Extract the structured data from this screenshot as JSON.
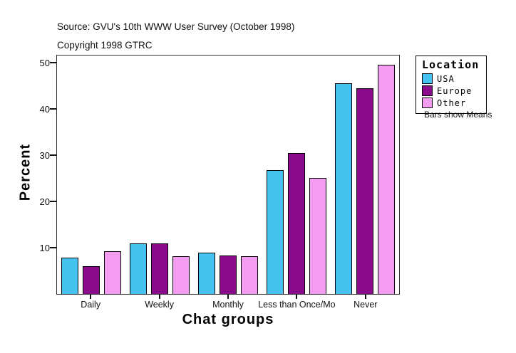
{
  "header": {
    "source": "Source: GVU's 10th WWW User Survey (October 1998)",
    "copyright": "Copyright 1998 GTRC"
  },
  "chart_data": {
    "type": "bar",
    "title": "",
    "xlabel": "Chat groups",
    "ylabel": "Percent",
    "categories": [
      "Daily",
      "Weekly",
      "Monthly",
      "Less than Once/Mo",
      "Never"
    ],
    "series": [
      {
        "name": "USA",
        "color": "#44C3F0",
        "values": [
          7.8,
          10.9,
          8.9,
          26.7,
          45.5
        ]
      },
      {
        "name": "Europe",
        "color": "#8B0A8B",
        "values": [
          6.0,
          10.9,
          8.3,
          30.5,
          44.4
        ]
      },
      {
        "name": "Other",
        "color": "#F49CF2",
        "values": [
          9.3,
          8.2,
          8.2,
          25.0,
          49.5
        ]
      }
    ],
    "ylim": [
      0,
      50
    ],
    "yticks": [
      10,
      20,
      30,
      40,
      50
    ],
    "grid": false,
    "legend_position": "right"
  },
  "legend": {
    "title": "Location",
    "items": [
      {
        "label": "USA",
        "color": "#44C3F0"
      },
      {
        "label": "Europe",
        "color": "#8B0A8B"
      },
      {
        "label": "Other",
        "color": "#F49CF2"
      }
    ],
    "note": "Bars show Means"
  }
}
